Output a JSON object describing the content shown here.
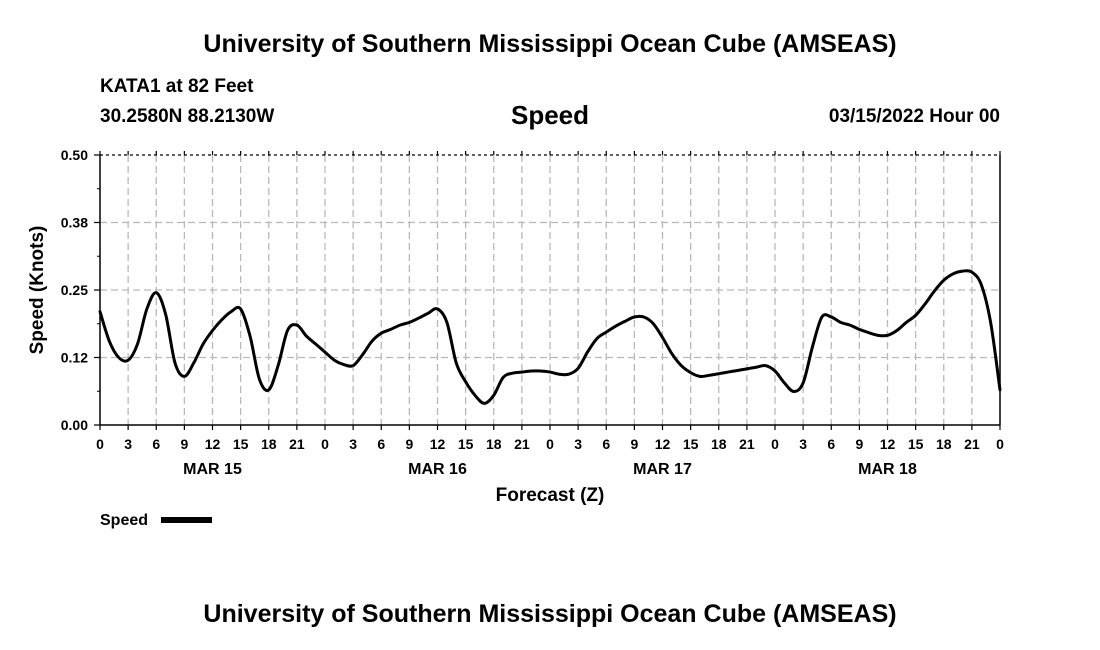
{
  "header": {
    "title": "University of Southern Mississippi Ocean Cube (AMSEAS)",
    "station": "KATA1 at 82 Feet",
    "coords": "30.2580N  88.2130W",
    "variable": "Speed",
    "datetime": "03/15/2022 Hour 00"
  },
  "footer": {
    "title": "University of Southern Mississippi Ocean Cube (AMSEAS)"
  },
  "chart_data": {
    "type": "line",
    "title": "Speed",
    "xlabel": "Forecast (Z)",
    "ylabel": "Speed (Knots)",
    "xlim": [
      0,
      96
    ],
    "ylim": [
      0,
      0.5
    ],
    "grid": true,
    "yticks": [
      0.0,
      0.125,
      0.25,
      0.375,
      0.5
    ],
    "ytick_labels": [
      "0.00",
      "0.12",
      "0.25",
      "0.38",
      "0.50"
    ],
    "xticks": [
      0,
      3,
      6,
      9,
      12,
      15,
      18,
      21,
      24,
      27,
      30,
      33,
      36,
      39,
      42,
      45,
      48,
      51,
      54,
      57,
      60,
      63,
      66,
      69,
      72,
      75,
      78,
      81,
      84,
      87,
      90,
      93,
      96
    ],
    "xtick_labels": [
      "0",
      "3",
      "6",
      "9",
      "12",
      "15",
      "18",
      "21",
      "0",
      "3",
      "6",
      "9",
      "12",
      "15",
      "18",
      "21",
      "0",
      "3",
      "6",
      "9",
      "12",
      "15",
      "18",
      "21",
      "0",
      "3",
      "6",
      "9",
      "12",
      "15",
      "18",
      "21",
      "0"
    ],
    "day_labels": [
      {
        "label": "MAR 15",
        "x": 12
      },
      {
        "label": "MAR 16",
        "x": 36
      },
      {
        "label": "MAR 17",
        "x": 60
      },
      {
        "label": "MAR 18",
        "x": 84
      }
    ],
    "legend": {
      "position": "bottom-left",
      "entries": [
        "Speed"
      ]
    },
    "series": [
      {
        "name": "Speed",
        "color": "#000000",
        "x": [
          0,
          1,
          2,
          3,
          4,
          5,
          6,
          7,
          8,
          9,
          10,
          11,
          12,
          13,
          14,
          15,
          16,
          17,
          18,
          19,
          20,
          21,
          22,
          23,
          24,
          25,
          26,
          27,
          28,
          29,
          30,
          31,
          32,
          33,
          34,
          35,
          36,
          37,
          38,
          39,
          40,
          41,
          42,
          43,
          44,
          45,
          46,
          47,
          48,
          49,
          50,
          51,
          52,
          53,
          54,
          55,
          56,
          57,
          58,
          59,
          60,
          61,
          62,
          63,
          64,
          65,
          66,
          67,
          68,
          69,
          70,
          71,
          72,
          73,
          74,
          75,
          76,
          77,
          78,
          79,
          80,
          81,
          82,
          83,
          84,
          85,
          86,
          87,
          88,
          89,
          90,
          91,
          92,
          93,
          94,
          95,
          96
        ],
        "values": [
          0.21,
          0.155,
          0.125,
          0.12,
          0.15,
          0.215,
          0.245,
          0.205,
          0.115,
          0.09,
          0.115,
          0.15,
          0.175,
          0.195,
          0.21,
          0.215,
          0.165,
          0.085,
          0.065,
          0.11,
          0.175,
          0.185,
          0.165,
          0.15,
          0.135,
          0.12,
          0.112,
          0.11,
          0.13,
          0.155,
          0.17,
          0.177,
          0.185,
          0.19,
          0.198,
          0.207,
          0.215,
          0.19,
          0.115,
          0.08,
          0.055,
          0.04,
          0.055,
          0.088,
          0.096,
          0.098,
          0.1,
          0.1,
          0.098,
          0.094,
          0.094,
          0.105,
          0.135,
          0.16,
          0.172,
          0.183,
          0.192,
          0.2,
          0.2,
          0.188,
          0.162,
          0.132,
          0.11,
          0.097,
          0.09,
          0.092,
          0.095,
          0.098,
          0.101,
          0.104,
          0.107,
          0.11,
          0.1,
          0.078,
          0.062,
          0.078,
          0.145,
          0.2,
          0.2,
          0.19,
          0.185,
          0.177,
          0.171,
          0.166,
          0.166,
          0.175,
          0.19,
          0.203,
          0.224,
          0.248,
          0.268,
          0.28,
          0.285,
          0.283,
          0.26,
          0.19,
          0.065
        ]
      }
    ]
  }
}
